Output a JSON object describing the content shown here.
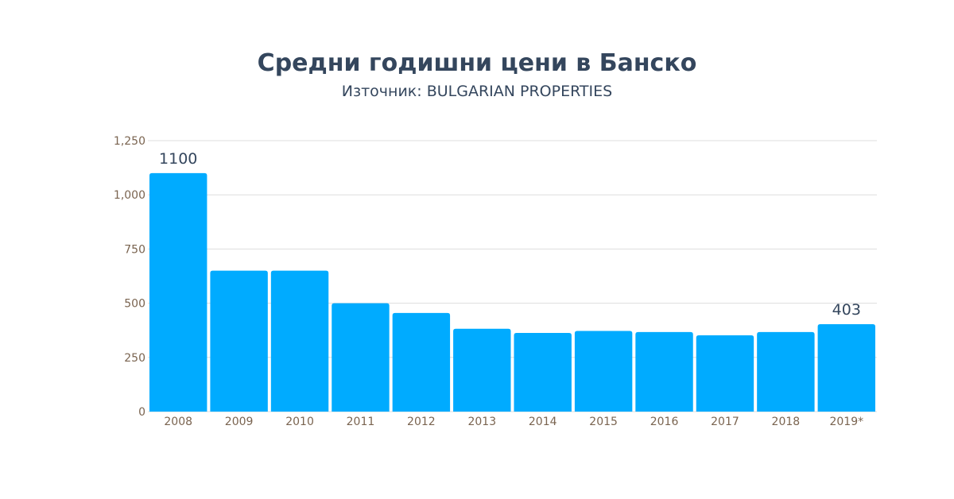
{
  "chart_data": {
    "type": "bar",
    "title": "Средни годишни цени в Банско",
    "subtitle": "Източник: BULGARIAN PROPERTIES",
    "xlabel": "",
    "ylabel": "",
    "categories": [
      "2008",
      "2009",
      "2010",
      "2011",
      "2012",
      "2013",
      "2014",
      "2015",
      "2016",
      "2017",
      "2018",
      "2019*"
    ],
    "values": [
      1100,
      650,
      650,
      500,
      455,
      382,
      363,
      372,
      367,
      352,
      367,
      403
    ],
    "data_labels": {
      "0": "1100",
      "11": "403"
    },
    "ylim": [
      0,
      1250
    ],
    "yticks": [
      0,
      250,
      500,
      750,
      1000,
      1250
    ],
    "ytick_labels": [
      "0",
      "250",
      "500",
      "750",
      "1,000",
      "1,250"
    ],
    "grid": true,
    "legend": "none",
    "colors": {
      "bar": "#00abff",
      "grid": "#dddddd",
      "tick": "#7a6450",
      "title": "#34465d"
    }
  }
}
